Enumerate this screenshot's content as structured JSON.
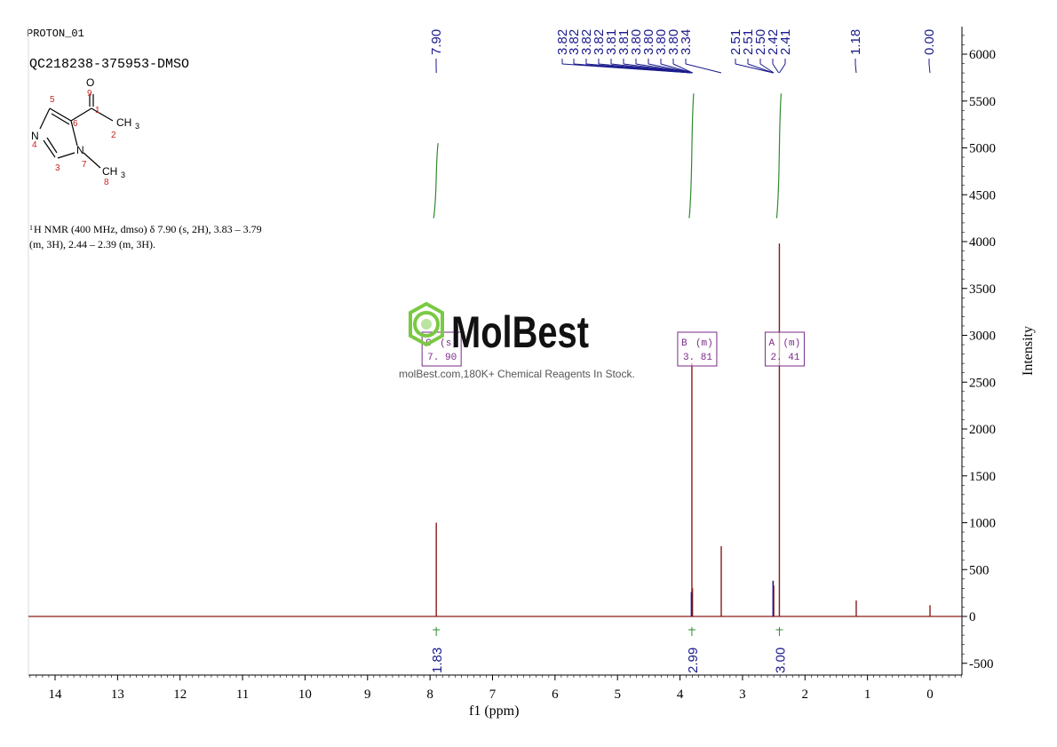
{
  "header": {
    "experiment": "PROTON_01",
    "sample": "QC218238-375953-DMSO"
  },
  "description": {
    "line1_sup": "1",
    "line1": "H NMR (400 MHz, dmso) δ 7.90 (s, 2H), 3.83 – 3.79",
    "line2": "(m, 3H), 2.44 – 2.39 (m, 3H)."
  },
  "structure": {
    "atom_labels": [
      "O",
      "CH",
      "3",
      "N",
      "N",
      "CH",
      "3"
    ],
    "atom_numbers": [
      "9",
      "1",
      "2",
      "5",
      "6",
      "4",
      "3",
      "7",
      "8"
    ]
  },
  "watermark": {
    "brand": "MolBest",
    "tagline": "molBest.com,180K+ Chemical Reagents In Stock."
  },
  "colors": {
    "spectrum": "#8b1a1a",
    "peak_label": "#1a1a8c",
    "integral": "#2e8b2e",
    "multiplet": "#7a2a8a",
    "logo": "#7ac943"
  },
  "chart_data": {
    "type": "line",
    "xlabel": "f1 (ppm)",
    "ylabel": "Intensity",
    "xlim": [
      14.5,
      -0.5
    ],
    "ylim": [
      -600,
      6200
    ],
    "x_ticks": [
      "14",
      "13",
      "12",
      "11",
      "10",
      "9",
      "8",
      "7",
      "6",
      "5",
      "4",
      "3",
      "2",
      "1",
      "0"
    ],
    "y_ticks": [
      "6000",
      "5500",
      "5000",
      "4500",
      "4000",
      "3500",
      "3000",
      "2500",
      "2000",
      "1500",
      "1000",
      "500",
      "0",
      "-500"
    ],
    "peaks": [
      {
        "ppm": 7.9,
        "height": 1000
      },
      {
        "ppm": 3.81,
        "height": 2700
      },
      {
        "ppm": 3.8,
        "height": 300
      },
      {
        "ppm": 3.34,
        "height": 750
      },
      {
        "ppm": 2.51,
        "height": 380
      },
      {
        "ppm": 2.5,
        "height": 330
      },
      {
        "ppm": 2.41,
        "height": 3980
      },
      {
        "ppm": 1.18,
        "height": 170
      },
      {
        "ppm": 0.0,
        "height": 120
      }
    ],
    "peak_labels": [
      "7.90",
      "3.82",
      "3.82",
      "3.82",
      "3.82",
      "3.81",
      "3.81",
      "3.80",
      "3.80",
      "3.80",
      "3.80",
      "3.34",
      "2.51",
      "2.51",
      "2.50",
      "2.42",
      "2.41",
      "1.18",
      "0.00"
    ],
    "integrals": [
      {
        "ppm": 7.9,
        "value": "1.83"
      },
      {
        "ppm": 3.81,
        "value": "2.99"
      },
      {
        "ppm": 2.41,
        "value": "3.00"
      }
    ],
    "multiplets": [
      {
        "letter": "C",
        "type": "(s)",
        "shift": "7. 90",
        "ppm": 7.9
      },
      {
        "letter": "B",
        "type": "(m)",
        "shift": "3. 81",
        "ppm": 3.81
      },
      {
        "letter": "A",
        "type": "(m)",
        "shift": "2. 41",
        "ppm": 2.41
      }
    ]
  }
}
